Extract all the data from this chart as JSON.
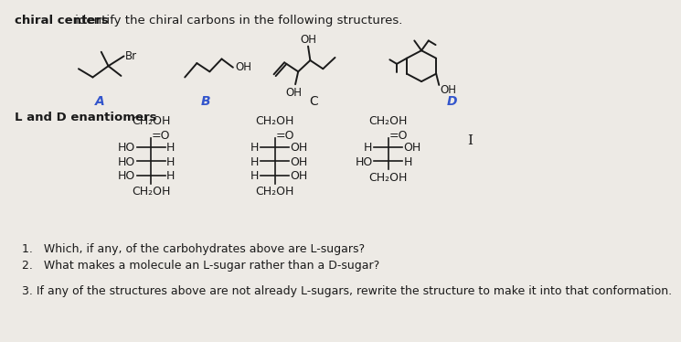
{
  "title_bold": "chiral centers",
  "title_dash": " – ",
  "title_rest": "identify the chiral carbons in the following structures.",
  "bg_color": "#edeae5",
  "text_color": "#1a1a1a",
  "section2_title": "L and D enantiomers",
  "q1": "1.   Which, if any, of the carbohydrates above are L-sugars?",
  "q2": "2.   What makes a molecule an L-sugar rather than a D-sugar?",
  "q3": "3. If any of the structures above are not already L-sugars, rewrite the structure to make it into that conformation.",
  "label_A_color": "#3355cc",
  "label_B_color": "#3355cc",
  "label_C_color": "#1a1a1a",
  "label_D_color": "#3355cc"
}
